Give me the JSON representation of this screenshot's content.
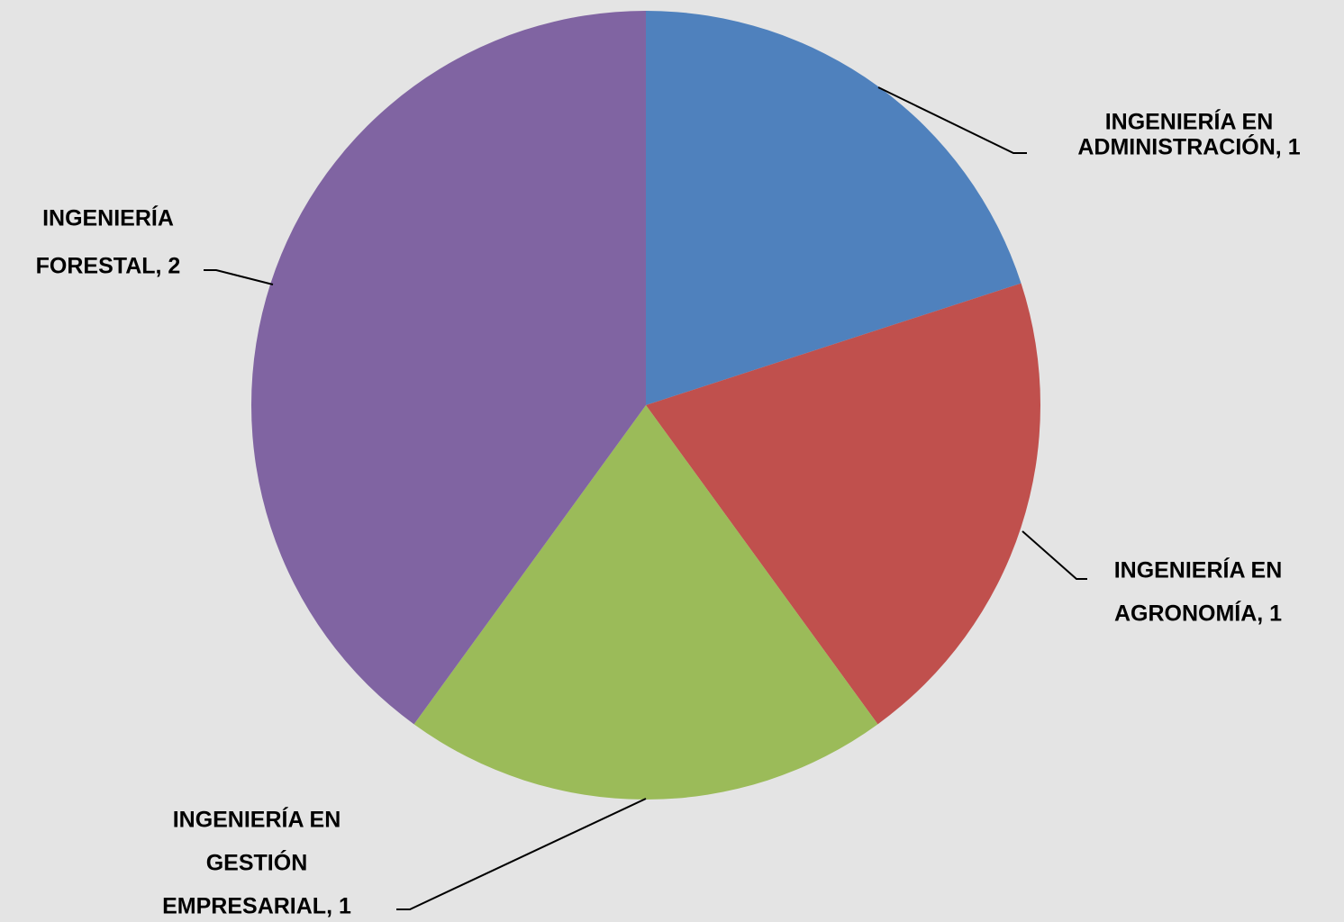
{
  "chart_data": {
    "type": "pie",
    "values": [
      1,
      1,
      1,
      2
    ],
    "value_labels": [
      [
        "INGENIERÍA EN",
        "ADMINISTRACIÓN, 1"
      ],
      [
        "INGENIERÍA EN",
        "AGRONOMÍA, 1"
      ],
      [
        "INGENIERÍA EN",
        "GESTIÓN",
        "EMPRESARIAL, 1"
      ],
      [
        "INGENIERÍA",
        "FORESTAL, 2"
      ]
    ],
    "colors": [
      "#4f81bd",
      "#c0504d",
      "#9bbb59",
      "#8064a2"
    ],
    "start_angle": 0,
    "direction": "clockwise"
  }
}
